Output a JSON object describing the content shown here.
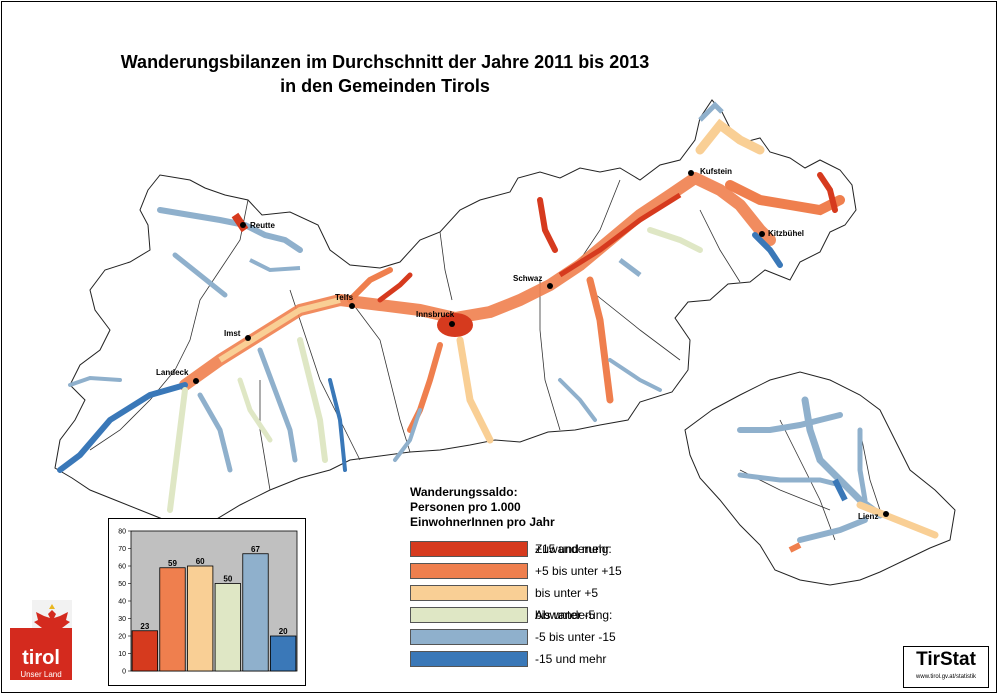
{
  "title": {
    "line1": "Wanderungsbilanzen im Durchschnitt der Jahre 2011 bis 2013",
    "line2": "in den Gemeinden Tirols"
  },
  "cities": [
    {
      "name": "Reutte"
    },
    {
      "name": "Telfs"
    },
    {
      "name": "Imst"
    },
    {
      "name": "Landeck"
    },
    {
      "name": "Innsbruck"
    },
    {
      "name": "Schwaz"
    },
    {
      "name": "Kufstein"
    },
    {
      "name": "Kitzbühel"
    },
    {
      "name": "Lienz"
    }
  ],
  "legend": {
    "title_line1": "Wanderungssaldo:",
    "title_line2": "Personen pro 1.000",
    "title_line3": "EinwohnerInnen pro Jahr",
    "items": [
      {
        "group": "Zuwanderung:",
        "range": "+15 und mehr",
        "color": "#d63a1e"
      },
      {
        "group": "",
        "range": "+5 bis unter +15",
        "color": "#ef7f4e"
      },
      {
        "group": "",
        "range": "bis unter +5",
        "color": "#f9cf95"
      },
      {
        "group": "Abwanderung:",
        "range": "bis unter -5",
        "color": "#dfe7c5"
      },
      {
        "group": "",
        "range": "-5 bis unter -15",
        "color": "#8fb0cc"
      },
      {
        "group": "",
        "range": "-15 und mehr",
        "color": "#3a78b8"
      }
    ]
  },
  "chart_data": {
    "type": "bar",
    "categories": [
      "+15 und mehr",
      "+5 bis unter +15",
      "bis unter +5",
      "bis unter -5",
      "-5 bis unter -15",
      "-15 und mehr"
    ],
    "values": [
      23,
      59,
      60,
      50,
      67,
      20
    ],
    "colors": [
      "#d63a1e",
      "#ef7f4e",
      "#f9cf95",
      "#dfe7c5",
      "#8fb0cc",
      "#3a78b8"
    ],
    "yticks": [
      "0",
      "10",
      "20",
      "30",
      "40",
      "50",
      "60",
      "70",
      "80"
    ],
    "ylim": [
      0,
      80
    ],
    "background": "#c0c0c0"
  },
  "logos": {
    "tirol_text": "tirol",
    "tirol_subtext": "Unser Land",
    "tirstat_text": "TirStat",
    "tirstat_url": "www.tirol.gv.at/statistik"
  }
}
